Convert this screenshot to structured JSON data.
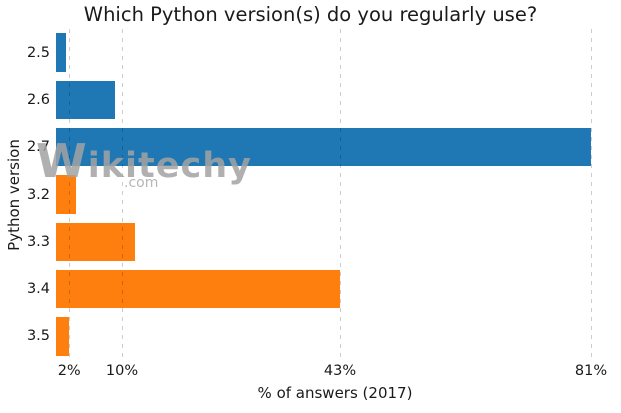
{
  "chart_data": {
    "type": "bar",
    "orientation": "horizontal",
    "title": "Which Python version(s) do you regularly use?",
    "xlabel": "% of answers (2017)",
    "ylabel": "Python version",
    "categories": [
      "2.5",
      "2.6",
      "2.7",
      "3.2",
      "3.3",
      "3.4",
      "3.5"
    ],
    "values": [
      1.5,
      9,
      81,
      3,
      12,
      43,
      2
    ],
    "bar_colors": [
      "#1f77b4",
      "#1f77b4",
      "#1f77b4",
      "#ff7f0e",
      "#ff7f0e",
      "#ff7f0e",
      "#ff7f0e"
    ],
    "xticks": [
      {
        "value": 2,
        "label": "2%"
      },
      {
        "value": 10,
        "label": "10%"
      },
      {
        "value": 43,
        "label": "43%"
      },
      {
        "value": 81,
        "label": "81%"
      }
    ],
    "xlim": [
      0,
      84.5
    ],
    "grid": {
      "axis": "x",
      "style": "dashed"
    },
    "legend": false
  },
  "watermark": {
    "brand": "Wikitechy",
    "domain": ".com"
  }
}
